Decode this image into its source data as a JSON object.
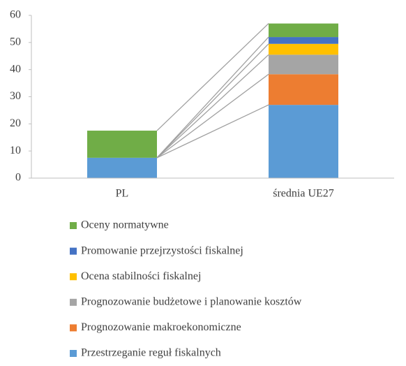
{
  "chart_data": {
    "type": "stacked_bar",
    "categories": [
      "PL",
      "średnia UE27"
    ],
    "series": [
      {
        "name": "Przestrzeganie reguł fiskalnych",
        "color": "#5b9bd5",
        "values": [
          7.5,
          27
        ]
      },
      {
        "name": "Prognozowanie makroekonomiczne",
        "color": "#ed7d31",
        "values": [
          0,
          11.3
        ]
      },
      {
        "name": "Prognozowanie budżetowe i planowanie kosztów",
        "color": "#a5a5a5",
        "values": [
          0,
          7.2
        ]
      },
      {
        "name": "Ocena stabilności fiskalnej",
        "color": "#ffc000",
        "values": [
          0,
          4
        ]
      },
      {
        "name": "Promowanie przejrzystości fiskalnej",
        "color": "#4472c4",
        "values": [
          0,
          2.5
        ]
      },
      {
        "name": "Oceny normatywne",
        "color": "#70ad47",
        "values": [
          10,
          5
        ]
      }
    ],
    "ylim": [
      0,
      60
    ],
    "yticks": [
      0,
      10,
      20,
      30,
      40,
      50,
      60
    ],
    "series_lines": true,
    "legend": "bottom"
  }
}
